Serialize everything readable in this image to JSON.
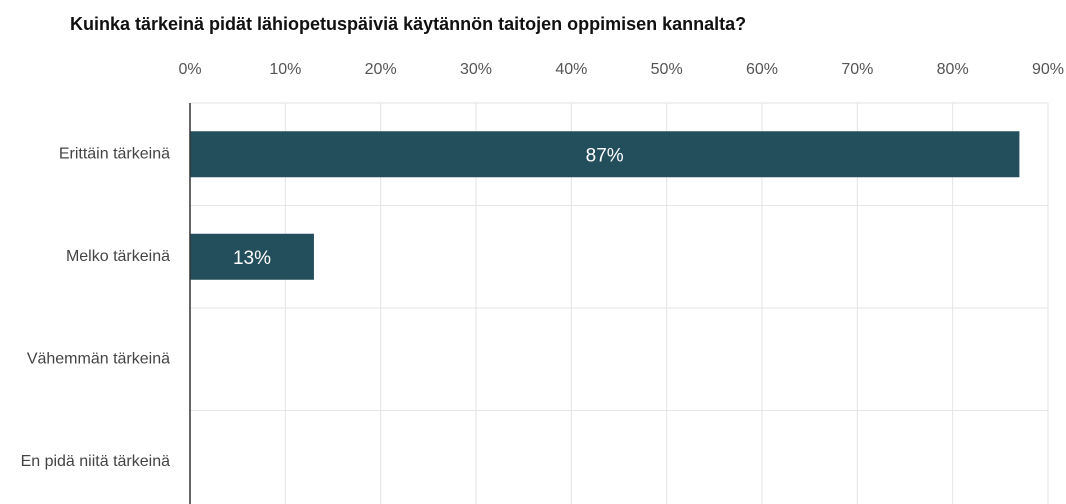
{
  "chart_data": {
    "type": "hbar",
    "title": "Kuinka tärkeinä pidät lähiopetuspäiviä käytännön taitojen oppimisen kannalta?",
    "categories": [
      "Erittäin tärkeinä",
      "Melko tärkeinä",
      "Vähemmän tärkeinä",
      "En pidä niitä tärkeinä"
    ],
    "values": [
      87,
      13,
      0,
      0
    ],
    "value_labels": [
      "87%",
      "13%",
      null,
      null
    ],
    "color": "#234e5c",
    "xlim": [
      0,
      90
    ],
    "xticks": [
      {
        "value": 0,
        "label": "0%"
      },
      {
        "value": 10,
        "label": "10%"
      },
      {
        "value": 20,
        "label": "20%"
      },
      {
        "value": 30,
        "label": "30%"
      },
      {
        "value": 40,
        "label": "40%"
      },
      {
        "value": 50,
        "label": "50%"
      },
      {
        "value": 60,
        "label": "60%"
      },
      {
        "value": 70,
        "label": "70%"
      },
      {
        "value": 80,
        "label": "80%"
      },
      {
        "value": 90,
        "label": "90%"
      }
    ],
    "grid": true
  }
}
